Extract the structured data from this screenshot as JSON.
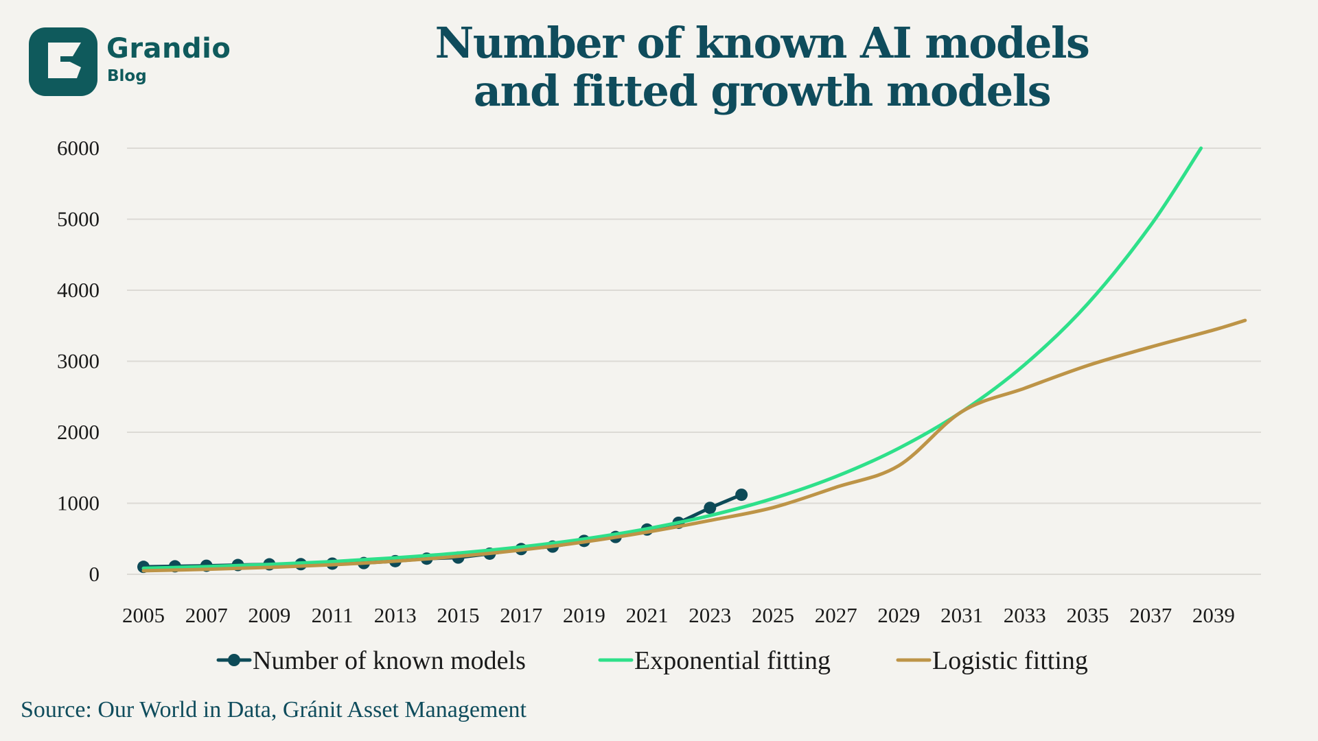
{
  "brand": {
    "name": "Grandio",
    "sub": "Blog",
    "logo_icon": "grandio-g-logo"
  },
  "colors": {
    "background": "#f4f3ef",
    "title": "#0f4c5c",
    "brand": "#0f5a5c",
    "known": "#0d4a57",
    "exponential": "#2ee08a",
    "logistic": "#bd9447",
    "grid": "#dcdad5"
  },
  "source": "Source: Our World in Data, Gránit Asset Management",
  "chart_data": {
    "type": "line",
    "title": "Number of known AI models and fitted growth models",
    "title_lines": [
      "Number of known AI models",
      "and fitted growth models"
    ],
    "xlabel": "",
    "ylabel": "",
    "xlim": [
      2005,
      2040
    ],
    "ylim": [
      0,
      6000
    ],
    "x_ticks": [
      "2005",
      "2007",
      "2009",
      "2011",
      "2013",
      "2015",
      "2017",
      "2019",
      "2021",
      "2023",
      "2025",
      "2027",
      "2029",
      "2031",
      "2033",
      "2035",
      "2037",
      "2039"
    ],
    "y_ticks": [
      "0",
      "1000",
      "2000",
      "3000",
      "4000",
      "5000",
      "6000"
    ],
    "grid": true,
    "legend_position": "bottom",
    "series": [
      {
        "name": "Number of known models",
        "kind": "line-markers",
        "x": [
          2005,
          2006,
          2007,
          2008,
          2009,
          2010,
          2011,
          2012,
          2013,
          2014,
          2015,
          2016,
          2017,
          2018,
          2019,
          2020,
          2021,
          2022,
          2023,
          2024
        ],
        "values": [
          105,
          112,
          120,
          130,
          140,
          142,
          150,
          158,
          185,
          220,
          235,
          290,
          355,
          390,
          470,
          525,
          630,
          725,
          935,
          1120
        ]
      },
      {
        "name": "Exponential fitting",
        "kind": "line",
        "x": [
          2005,
          2007,
          2009,
          2011,
          2013,
          2015,
          2017,
          2019,
          2021,
          2023,
          2025,
          2027,
          2029,
          2031,
          2033,
          2035,
          2037,
          2038.6
        ],
        "values": [
          84,
          108,
          139,
          179,
          232,
          299,
          386,
          497,
          641,
          827,
          1067,
          1376,
          1775,
          2289,
          2953,
          3809,
          4913,
          6000
        ]
      },
      {
        "name": "Logistic fitting",
        "kind": "line",
        "x": [
          2005,
          2007,
          2009,
          2011,
          2013,
          2015,
          2017,
          2019,
          2021,
          2023,
          2025,
          2027,
          2029,
          2031,
          2033,
          2035,
          2037,
          2039,
          2040
        ],
        "values": [
          50,
          70,
          97,
          134,
          185,
          253,
          342,
          455,
          594,
          758,
          939,
          1225,
          1530,
          2290,
          2620,
          2940,
          3200,
          3440,
          3575
        ]
      }
    ]
  }
}
